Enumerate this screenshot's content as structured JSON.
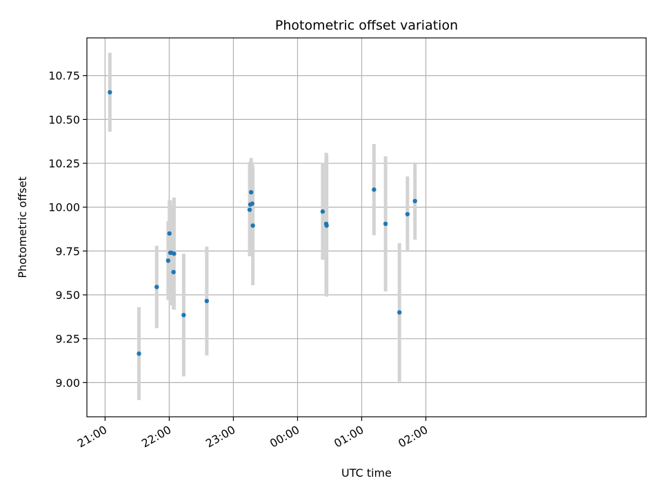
{
  "chart_data": {
    "type": "scatter",
    "title": "Photometric offset variation",
    "xlabel": "UTC time",
    "ylabel": "Photometric offset",
    "x_unit": "minutes after 21:00 UTC",
    "xlim": [
      -17,
      506
    ],
    "ylim": [
      8.805,
      10.965
    ],
    "grid": true,
    "legend": "none",
    "x_ticks": [
      {
        "value": 0,
        "label": "21:00"
      },
      {
        "value": 60,
        "label": "22:00"
      },
      {
        "value": 120,
        "label": "23:00"
      },
      {
        "value": 180,
        "label": "00:00"
      },
      {
        "value": 240,
        "label": "01:00"
      },
      {
        "value": 300,
        "label": "02:00"
      }
    ],
    "y_ticks": [
      {
        "value": 9.0,
        "label": "9.00"
      },
      {
        "value": 9.25,
        "label": "9.25"
      },
      {
        "value": 9.5,
        "label": "9.50"
      },
      {
        "value": 9.75,
        "label": "9.75"
      },
      {
        "value": 10.0,
        "label": "10.00"
      },
      {
        "value": 10.25,
        "label": "10.25"
      },
      {
        "value": 10.5,
        "label": "10.50"
      },
      {
        "value": 10.75,
        "label": "10.75"
      }
    ],
    "colors": {
      "point": "#1f77b4",
      "errorbar": "#d3d3d3",
      "grid": "#b0b0b0"
    },
    "points": [
      {
        "x": 4.5,
        "y": 10.655,
        "err": 0.225
      },
      {
        "x": 31.7,
        "y": 9.165,
        "err": 0.265
      },
      {
        "x": 48.3,
        "y": 9.545,
        "err": 0.235
      },
      {
        "x": 59.0,
        "y": 9.695,
        "err": 0.225
      },
      {
        "x": 60.2,
        "y": 9.85,
        "err": 0.19
      },
      {
        "x": 61.0,
        "y": 9.74,
        "err": 0.3
      },
      {
        "x": 62.0,
        "y": 9.74,
        "err": 0.27
      },
      {
        "x": 64.0,
        "y": 9.63,
        "err": 0.21
      },
      {
        "x": 64.5,
        "y": 9.735,
        "err": 0.32
      },
      {
        "x": 73.5,
        "y": 9.385,
        "err": 0.35
      },
      {
        "x": 95.1,
        "y": 9.465,
        "err": 0.31
      },
      {
        "x": 135.2,
        "y": 9.985,
        "err": 0.265
      },
      {
        "x": 135.8,
        "y": 10.015,
        "err": 0.245
      },
      {
        "x": 136.6,
        "y": 10.085,
        "err": 0.195
      },
      {
        "x": 137.6,
        "y": 10.02,
        "err": 0.235
      },
      {
        "x": 138.2,
        "y": 9.895,
        "err": 0.34
      },
      {
        "x": 203.5,
        "y": 9.975,
        "err": 0.275
      },
      {
        "x": 206.8,
        "y": 9.905,
        "err": 0.405
      },
      {
        "x": 207.2,
        "y": 9.895,
        "err": 0.405
      },
      {
        "x": 251.5,
        "y": 10.1,
        "err": 0.26
      },
      {
        "x": 262.3,
        "y": 9.905,
        "err": 0.385
      },
      {
        "x": 275.3,
        "y": 9.4,
        "err": 0.395
      },
      {
        "x": 282.8,
        "y": 9.96,
        "err": 0.215
      },
      {
        "x": 289.8,
        "y": 10.035,
        "err": 0.22
      }
    ]
  }
}
